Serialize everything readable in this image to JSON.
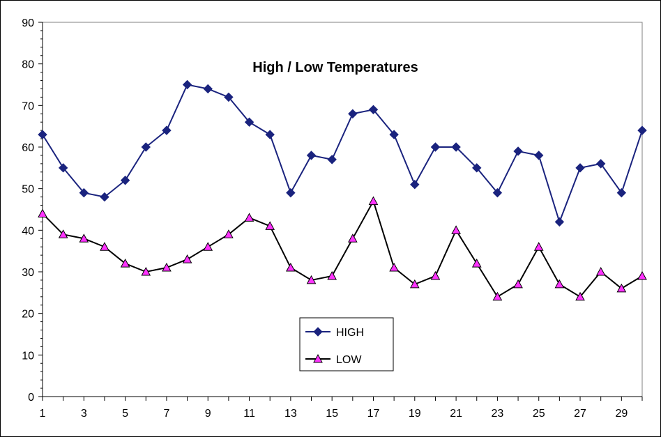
{
  "chart_data": {
    "type": "line",
    "title": "High / Low Temperatures",
    "xlabel": "",
    "ylabel": "",
    "x": [
      1,
      2,
      3,
      4,
      5,
      6,
      7,
      8,
      9,
      10,
      11,
      12,
      13,
      14,
      15,
      16,
      17,
      18,
      19,
      20,
      21,
      22,
      23,
      24,
      25,
      26,
      27,
      28,
      29,
      30
    ],
    "x_tick_labels": [
      "1",
      "3",
      "5",
      "7",
      "9",
      "11",
      "13",
      "15",
      "17",
      "19",
      "21",
      "23",
      "25",
      "27",
      "29"
    ],
    "y_tick_labels": [
      "0",
      "10",
      "20",
      "30",
      "40",
      "50",
      "60",
      "70",
      "80",
      "90"
    ],
    "xlim": [
      1,
      30
    ],
    "ylim": [
      0,
      90
    ],
    "y_major_step": 10,
    "grid": false,
    "legend_position": "bottom-center",
    "series": [
      {
        "name": "HIGH",
        "marker": "diamond",
        "line_color": "#1a237e",
        "marker_fill": "#1a237e",
        "values": [
          63,
          55,
          49,
          48,
          52,
          60,
          64,
          75,
          74,
          72,
          66,
          63,
          49,
          58,
          57,
          68,
          69,
          63,
          51,
          60,
          60,
          55,
          49,
          59,
          58,
          42,
          55,
          56,
          49,
          64
        ]
      },
      {
        "name": "LOW",
        "marker": "triangle",
        "line_color": "#000000",
        "marker_fill": "#ff33ff",
        "values": [
          44,
          39,
          38,
          36,
          32,
          30,
          31,
          33,
          36,
          39,
          43,
          41,
          31,
          28,
          29,
          38,
          47,
          31,
          27,
          29,
          40,
          32,
          24,
          27,
          36,
          27,
          24,
          30,
          26,
          29
        ]
      }
    ]
  }
}
